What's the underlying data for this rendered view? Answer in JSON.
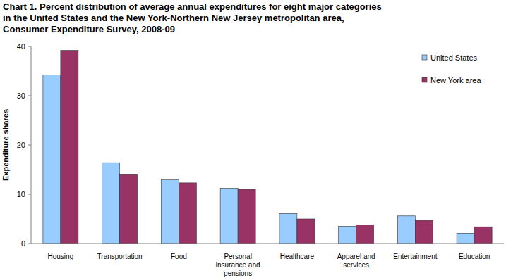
{
  "chart_data": {
    "type": "bar",
    "title": "Chart 1. Percent distribution of average annual expenditures for eight major categories\nin the United States and the New York-Northern New Jersey metropolitan area,\nConsumer Expenditure Survey, 2008-09",
    "y_label": "Expenditure shares",
    "categories": [
      "Housing",
      "Transportation",
      "Food",
      "Personal insurance and pensions",
      "Healthcare",
      "Apparel and services",
      "Entertainment",
      "Education"
    ],
    "series": [
      {
        "name": "United States",
        "color": "#99ccff",
        "values": [
          34.2,
          16.4,
          12.9,
          11.2,
          6.1,
          3.5,
          5.6,
          2.1
        ]
      },
      {
        "name": "New York area",
        "color": "#993366",
        "values": [
          39.2,
          14.1,
          12.3,
          11.0,
          5.0,
          3.8,
          4.7,
          3.4
        ]
      }
    ],
    "ylim": [
      0,
      40
    ],
    "yticks": [
      0,
      10,
      20,
      30,
      40
    ],
    "grid": false,
    "legend": "upper right"
  }
}
